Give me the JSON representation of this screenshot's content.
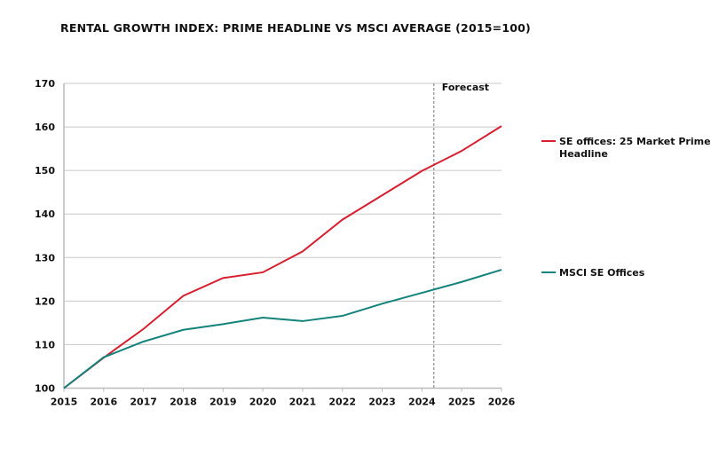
{
  "chart_data": {
    "type": "line",
    "title": "RENTAL GROWTH INDEX: PRIME HEADLINE VS MSCI AVERAGE (2015=100)",
    "xlabel": "",
    "ylabel": "",
    "x": [
      2015,
      2016,
      2017,
      2018,
      2019,
      2020,
      2021,
      2022,
      2023,
      2024,
      2025,
      2026
    ],
    "ylim": [
      100,
      170
    ],
    "yticks": [
      100,
      110,
      120,
      130,
      140,
      150,
      160,
      170
    ],
    "grid": true,
    "legend_placement": "right",
    "annotation": {
      "label": "Forecast",
      "x": 2024.3
    },
    "series": [
      {
        "name": "SE offices: 25 Market Prime Headline",
        "name_lines": [
          "SE offices: 25 Market Prime",
          "Headline"
        ],
        "color": "#d71f30",
        "values": [
          100,
          107.0,
          113.6,
          121.2,
          125.3,
          126.6,
          131.4,
          138.7,
          144.3,
          149.9,
          154.5,
          160.2
        ]
      },
      {
        "name": "MSCI SE Offices",
        "name_lines": [
          "MSCI SE Offices"
        ],
        "color": "#12837b",
        "values": [
          100,
          107.1,
          110.7,
          113.4,
          114.7,
          116.2,
          115.4,
          116.6,
          119.4,
          121.9,
          124.4,
          127.2
        ]
      }
    ]
  }
}
